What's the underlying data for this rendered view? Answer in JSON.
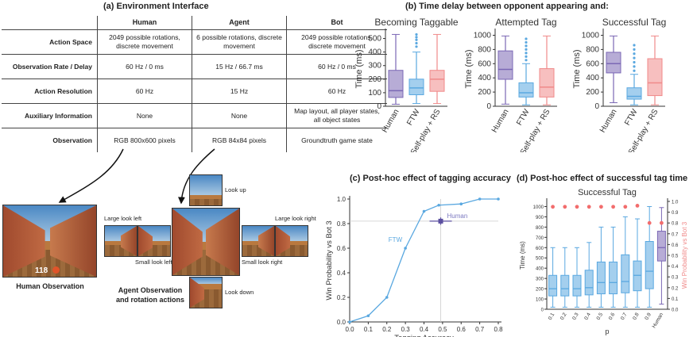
{
  "panel_a": {
    "title": "(a) Environment Interface",
    "columns": [
      "Human",
      "Agent",
      "Bot"
    ],
    "rows": [
      {
        "label": "Action Space",
        "cells": [
          "2049 possible rotations, discrete movement",
          "6 possible rotations, discrete movement",
          "2049 possible rotations, discrete movement"
        ]
      },
      {
        "label": "Observation Rate / Delay",
        "cells": [
          "60 Hz / 0 ms",
          "15 Hz / 66.7 ms",
          "60 Hz / 0 ms"
        ]
      },
      {
        "label": "Action Resolution",
        "cells": [
          "60 Hz",
          "15 Hz",
          "60 Hz"
        ]
      },
      {
        "label": "Auxiliary Information",
        "cells": [
          "None",
          "None",
          "Map layout, all player states, all object states"
        ]
      },
      {
        "label": "Observation",
        "cells": [
          "RGB 800x600 pixels",
          "RGB 84x84 pixels",
          "Groundtruth game state"
        ]
      }
    ],
    "human_caption": "Human Observation",
    "agent_caption": "Agent Observation and rotation actions",
    "hud_value": "118",
    "look_labels": {
      "up": "Look up",
      "down": "Look down",
      "large_left": "Large look left",
      "small_left": "Small look left",
      "small_right": "Small look right",
      "large_right": "Large look right"
    }
  },
  "panel_b": {
    "title": "(b) Time delay between opponent appearing and:",
    "colors": {
      "Human": "#7b68b5",
      "FTW": "#5aa8e0",
      "Self-play + RS": "#f08a8a"
    },
    "chart_data": [
      {
        "type": "box",
        "title": "Becoming Taggable",
        "ylabel": "Time (ms)",
        "categories": [
          "Human",
          "FTW",
          "Self-play + RS"
        ],
        "ylim": [
          0,
          550
        ],
        "yticks": [
          0,
          100,
          200,
          300,
          400,
          500
        ],
        "boxes": [
          {
            "name": "Human",
            "min": 15,
            "q1": 65,
            "median": 115,
            "q3": 265,
            "max": 530
          },
          {
            "name": "FTW",
            "min": 20,
            "q1": 85,
            "median": 135,
            "q3": 200,
            "max": 400,
            "outliers": [
              440,
              465,
              490,
              510,
              530
            ]
          },
          {
            "name": "Self-play + RS",
            "min": 20,
            "q1": 110,
            "median": 200,
            "q3": 265,
            "max": 530
          }
        ]
      },
      {
        "type": "box",
        "title": "Attempted Tag",
        "ylabel": "Time (ms)",
        "categories": [
          "Human",
          "FTW",
          "Self-play + RS"
        ],
        "ylim": [
          0,
          1050
        ],
        "yticks": [
          0,
          200,
          400,
          600,
          800,
          1000
        ],
        "boxes": [
          {
            "name": "Human",
            "min": 30,
            "q1": 380,
            "median": 520,
            "q3": 780,
            "max": 990
          },
          {
            "name": "FTW",
            "min": 20,
            "q1": 130,
            "median": 190,
            "q3": 330,
            "max": 600,
            "outliers": [
              650,
              700,
              750,
              800,
              850,
              900,
              950
            ]
          },
          {
            "name": "Self-play + RS",
            "min": 20,
            "q1": 130,
            "median": 270,
            "q3": 530,
            "max": 990
          }
        ]
      },
      {
        "type": "box",
        "title": "Successful Tag",
        "ylabel": "Time (ms)",
        "categories": [
          "Human",
          "FTW",
          "Self-play + RS"
        ],
        "ylim": [
          0,
          1050
        ],
        "yticks": [
          0,
          200,
          400,
          600,
          800,
          1000
        ],
        "boxes": [
          {
            "name": "Human",
            "min": 50,
            "q1": 470,
            "median": 600,
            "q3": 760,
            "max": 990
          },
          {
            "name": "FTW",
            "min": 20,
            "q1": 100,
            "median": 140,
            "q3": 260,
            "max": 450,
            "outliers": [
              500,
              560,
              620,
              680,
              740,
              800,
              860
            ]
          },
          {
            "name": "Self-play + RS",
            "min": 20,
            "q1": 150,
            "median": 330,
            "q3": 670,
            "max": 990
          }
        ]
      }
    ]
  },
  "panel_c": {
    "title": "(c) Post-hoc effect of tagging accuracy",
    "chart_data": {
      "type": "line",
      "xlabel": "Tagging Accuracy",
      "ylabel": "Win Probability vs Bot 3",
      "xlim": [
        0,
        0.8
      ],
      "ylim": [
        0,
        1.0
      ],
      "xticks": [
        0.0,
        0.1,
        0.2,
        0.3,
        0.4,
        0.5,
        0.6,
        0.7,
        0.8
      ],
      "yticks": [
        0.0,
        0.2,
        0.4,
        0.6,
        0.8,
        1.0
      ],
      "series": [
        {
          "name": "FTW",
          "x": [
            0.0,
            0.1,
            0.2,
            0.3,
            0.4,
            0.48,
            0.6,
            0.7,
            0.8
          ],
          "y": [
            0.0,
            0.05,
            0.2,
            0.6,
            0.9,
            0.95,
            0.96,
            1.0,
            1.0
          ],
          "color": "#5aa8e0"
        }
      ],
      "human_point": {
        "name": "Human",
        "x": 0.49,
        "y": 0.82,
        "xerr": 0.06,
        "yerr": 0.03,
        "color": "#5b4fa0"
      }
    }
  },
  "panel_d": {
    "title": "(d) Post-hoc effect of successful tag time",
    "chart_data": {
      "type": "box",
      "title": "Successful Tag",
      "ylabel": "Time (ms)",
      "ylabel_right": "Win Probability vs Bot 3",
      "xlabel": "p",
      "ylim": [
        0,
        1050
      ],
      "yticks": [
        0,
        100,
        200,
        300,
        400,
        500,
        600,
        700,
        800,
        900,
        1000
      ],
      "ylim_right": [
        0,
        1.0
      ],
      "yticks_right": [
        0.0,
        0.1,
        0.2,
        0.3,
        0.4,
        0.5,
        0.6,
        0.7,
        0.8,
        0.9,
        1.0
      ],
      "categories": [
        "0.1",
        "0.2",
        "0.3",
        "0.4",
        "0.5",
        "0.6",
        "0.7",
        "0.8",
        "0.9",
        "Human"
      ],
      "boxes": [
        {
          "name": "0.1",
          "min": 20,
          "q1": 130,
          "median": 200,
          "q3": 330,
          "max": 600,
          "win": 0.95
        },
        {
          "name": "0.2",
          "min": 20,
          "q1": 130,
          "median": 200,
          "q3": 330,
          "max": 600,
          "win": 0.95
        },
        {
          "name": "0.3",
          "min": 20,
          "q1": 130,
          "median": 200,
          "q3": 330,
          "max": 600,
          "win": 0.95
        },
        {
          "name": "0.4",
          "min": 20,
          "q1": 140,
          "median": 210,
          "q3": 380,
          "max": 650,
          "win": 0.95
        },
        {
          "name": "0.5",
          "min": 20,
          "q1": 150,
          "median": 260,
          "q3": 460,
          "max": 800,
          "win": 0.95
        },
        {
          "name": "0.6",
          "min": 20,
          "q1": 150,
          "median": 260,
          "q3": 460,
          "max": 800,
          "win": 0.95
        },
        {
          "name": "0.7",
          "min": 20,
          "q1": 160,
          "median": 270,
          "q3": 530,
          "max": 900,
          "win": 0.95
        },
        {
          "name": "0.8",
          "min": 20,
          "q1": 180,
          "median": 330,
          "q3": 470,
          "max": 880,
          "win": 0.96
        },
        {
          "name": "0.9",
          "min": 20,
          "q1": 200,
          "median": 370,
          "q3": 660,
          "max": 1000,
          "win": 0.8
        },
        {
          "name": "Human",
          "min": 50,
          "q1": 470,
          "median": 600,
          "q3": 760,
          "max": 990,
          "win": 0.8
        }
      ]
    }
  }
}
